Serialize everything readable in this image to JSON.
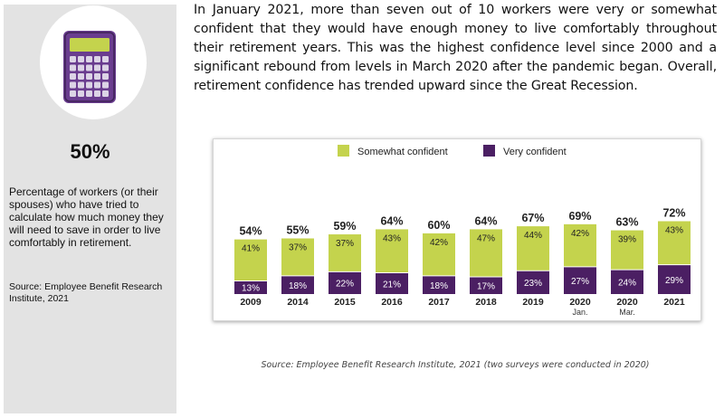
{
  "sidebar": {
    "stat_value": "50%",
    "stat_description": "Percentage of workers (or their spouses) who have tried to calculate how much money they will need to save in order to live comfortably in retirement.",
    "source": "Source: Employee Benefit Research Institute, 2021",
    "icon": "calculator-icon",
    "icon_color": "#6a3d8f"
  },
  "paragraph": "In January 2021, more than seven out of 10 workers were very or somewhat confident that they would have enough money to live comfortably throughout their retirement years. This was the highest confidence level since 2000 and a significant rebound from levels in March 2020 after the pandemic began. Overall, retirement confidence has trended upward since the Great Recession.",
  "chart_source": "Source: Employee Benefit Research Institute, 2021 (two surveys were conducted in 2020)",
  "chart_data": {
    "type": "bar",
    "stacked": true,
    "categories": [
      "2009",
      "2014",
      "2015",
      "2016",
      "2017",
      "2018",
      "2019",
      "2020",
      "2020",
      "2021"
    ],
    "category_sublabels": [
      "",
      "",
      "",
      "",
      "",
      "",
      "",
      "Jan.",
      "Mar.",
      ""
    ],
    "totals": [
      "54%",
      "55%",
      "59%",
      "64%",
      "60%",
      "64%",
      "67%",
      "69%",
      "63%",
      "72%"
    ],
    "series": [
      {
        "name": "Very confident",
        "color": "#4b1f63",
        "values": [
          13,
          18,
          22,
          21,
          18,
          17,
          23,
          27,
          24,
          29
        ]
      },
      {
        "name": "Somewhat confident",
        "color": "#c4d34d",
        "values": [
          41,
          37,
          37,
          43,
          42,
          47,
          44,
          42,
          39,
          43
        ]
      }
    ],
    "legend": [
      "Somewhat confident",
      "Very confident"
    ],
    "legend_placement": "top",
    "grid": false,
    "ylim": [
      0,
      75
    ]
  }
}
